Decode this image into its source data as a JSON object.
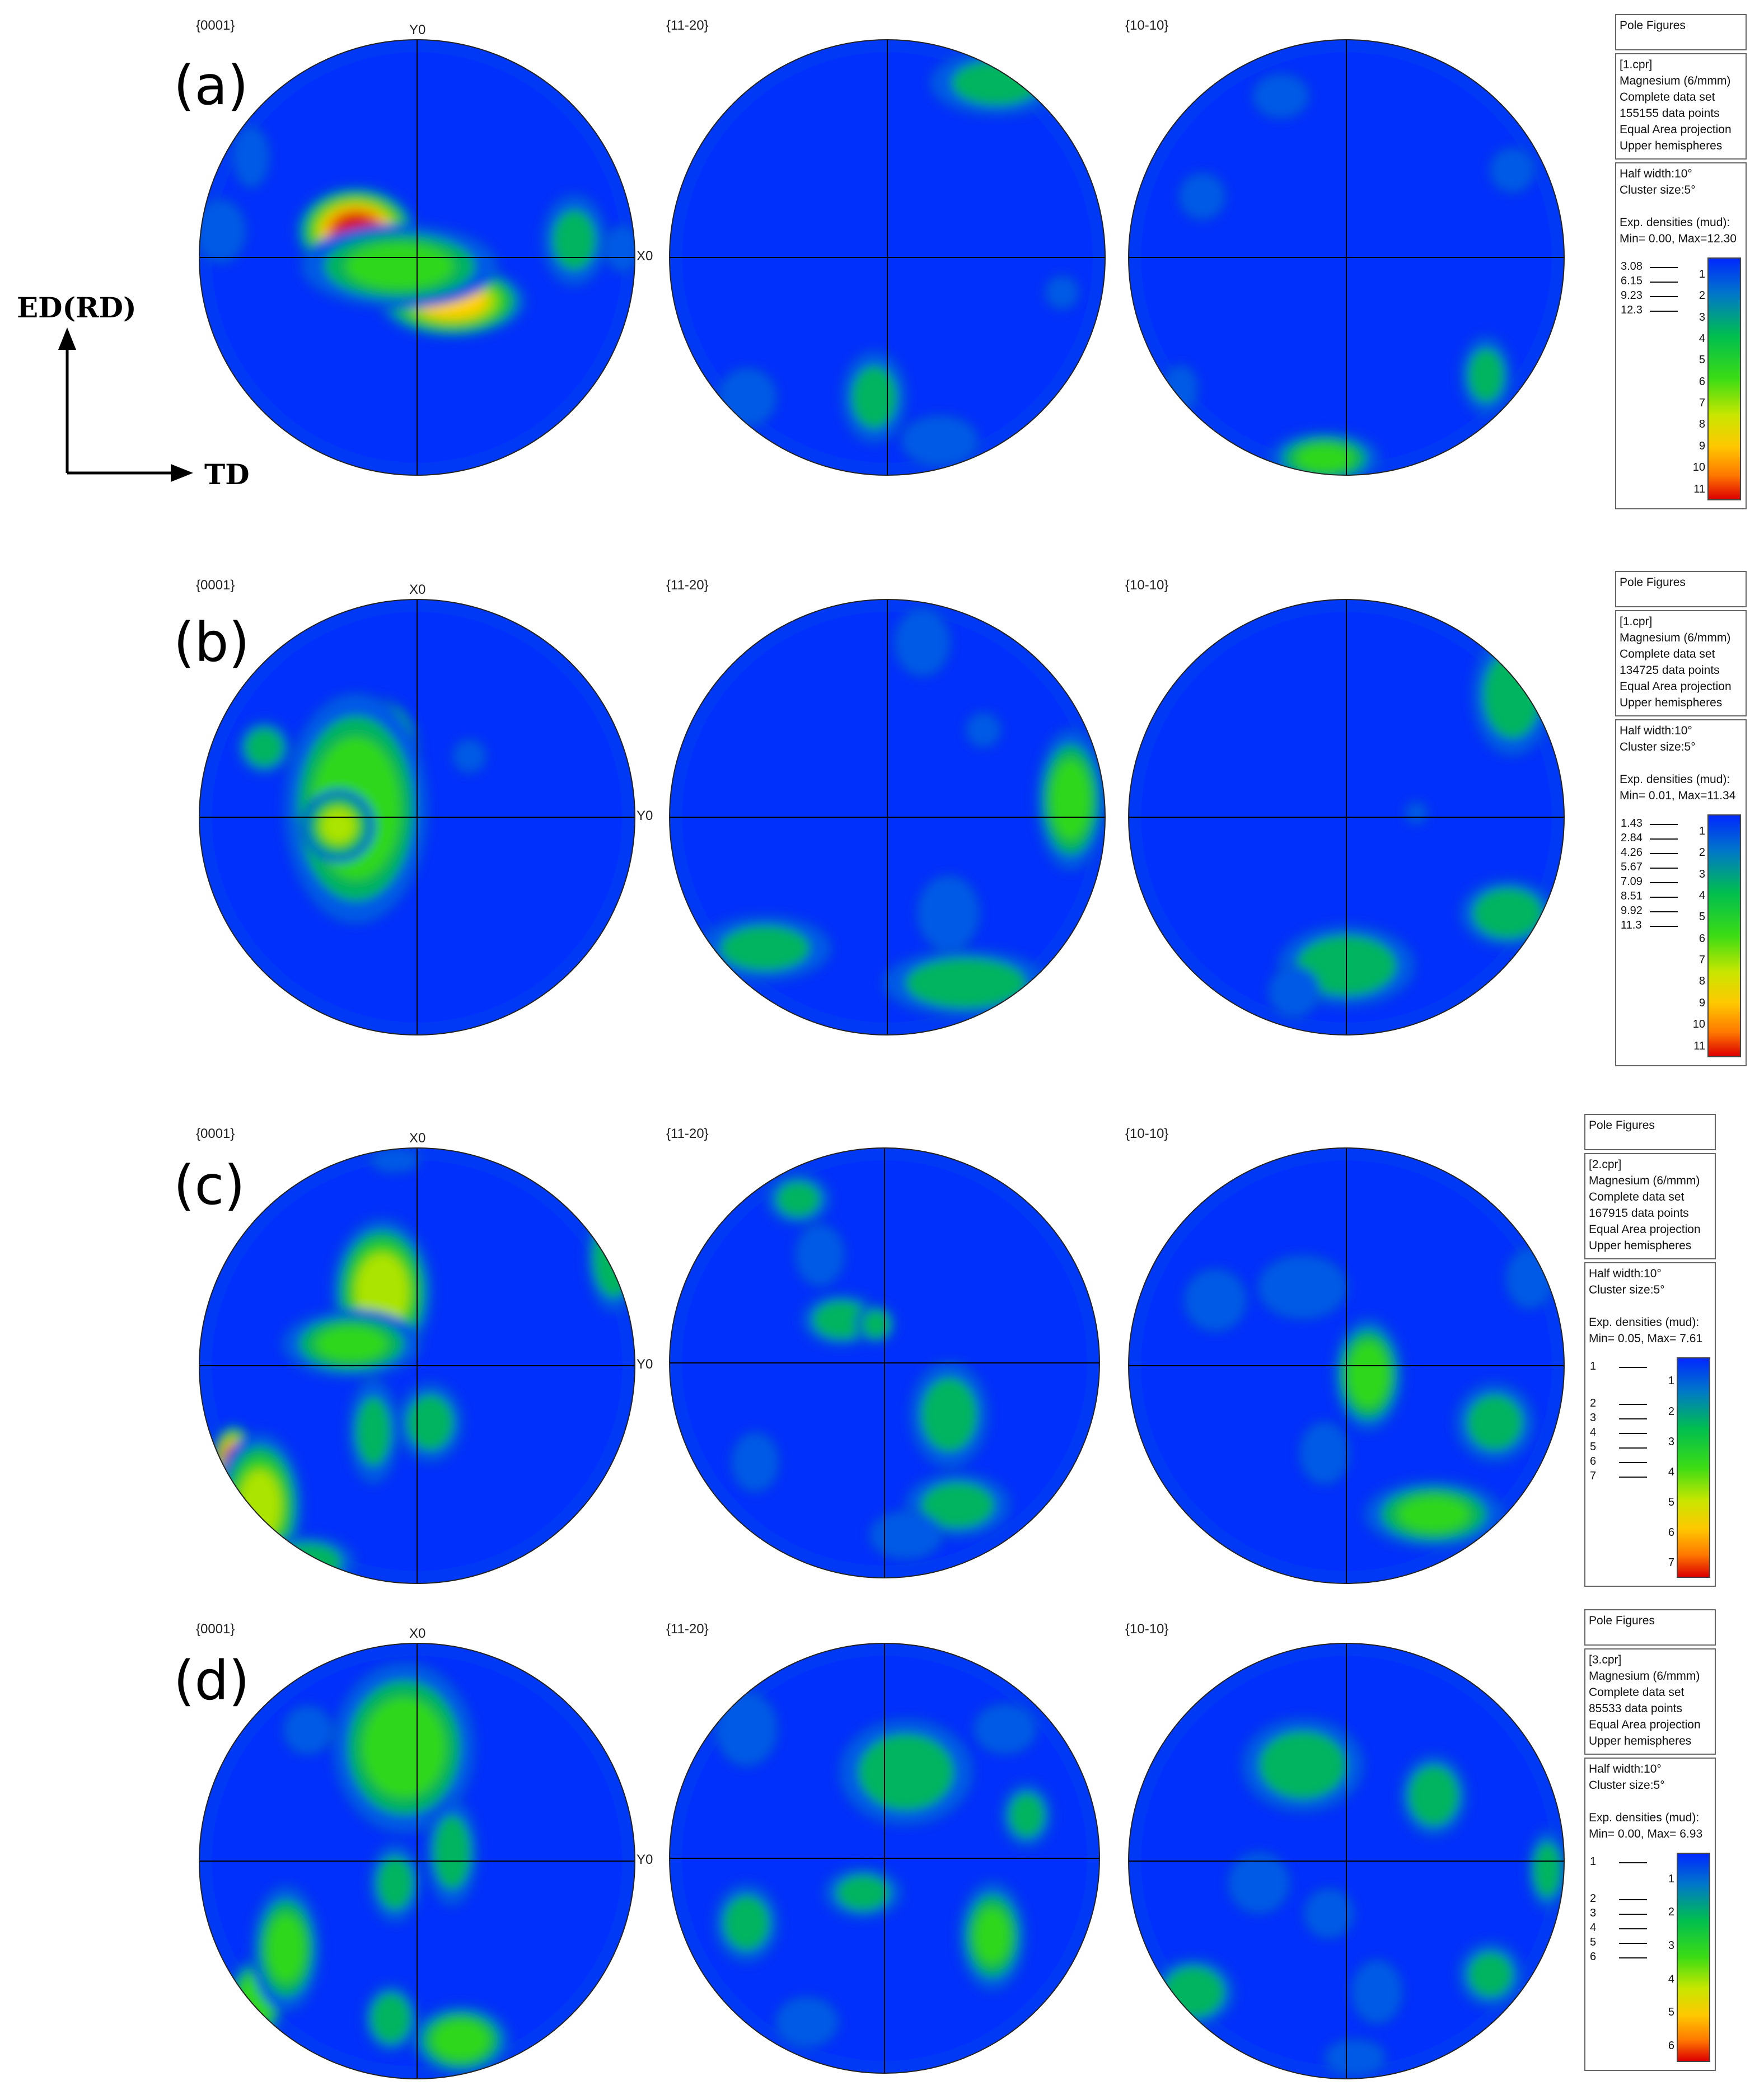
{
  "axes_indicator": {
    "vertical": "ED(RD)",
    "horizontal": "TD"
  },
  "panels": [
    {
      "label": "(a)",
      "titles": [
        "{0001}",
        "{11-20}",
        "{10-10}"
      ],
      "axis_labels": {
        "top": "Y0",
        "right": "X0"
      },
      "legend": {
        "header": "Pole Figures",
        "info": [
          "[1.cpr]",
          "Magnesium (6/mmm)",
          "Complete data set",
          "155155 data points",
          "Equal Area projection",
          "Upper hemispheres"
        ],
        "params": [
          "Half width:10°",
          "Cluster size:5°",
          "",
          "Exp. densities (mud):",
          "Min= 0.00, Max=12.30"
        ],
        "levels": [
          "3.08",
          "6.15",
          "9.23",
          "12.3"
        ],
        "scale": [
          "1",
          "2",
          "3",
          "4",
          "5",
          "6",
          "7",
          "8",
          "9",
          "10",
          "11"
        ]
      },
      "blobs": [
        [
          [
            0.36,
            0.44,
            0.08,
            0.06,
            1.0
          ],
          [
            0.58,
            0.6,
            0.1,
            0.05,
            0.78
          ],
          [
            0.46,
            0.52,
            0.14,
            0.06,
            0.45
          ],
          [
            0.86,
            0.46,
            0.05,
            0.07,
            0.28
          ],
          [
            0.05,
            0.44,
            0.04,
            0.05,
            0.25
          ],
          [
            0.12,
            0.27,
            0.03,
            0.05,
            0.2
          ],
          [
            0.97,
            0.48,
            0.03,
            0.04,
            0.15
          ]
        ],
        [
          [
            0.75,
            0.1,
            0.1,
            0.05,
            0.3
          ],
          [
            0.47,
            0.82,
            0.05,
            0.07,
            0.3
          ],
          [
            0.62,
            0.92,
            0.06,
            0.04,
            0.25
          ],
          [
            0.18,
            0.82,
            0.05,
            0.05,
            0.15
          ],
          [
            0.9,
            0.58,
            0.03,
            0.03,
            0.12
          ],
          [
            0.1,
            0.5,
            0.03,
            0.03,
            0.1
          ]
        ],
        [
          [
            0.45,
            0.96,
            0.08,
            0.04,
            0.42
          ],
          [
            0.82,
            0.77,
            0.04,
            0.06,
            0.3
          ],
          [
            0.12,
            0.8,
            0.03,
            0.04,
            0.15
          ],
          [
            0.17,
            0.36,
            0.04,
            0.04,
            0.15
          ],
          [
            0.35,
            0.13,
            0.05,
            0.04,
            0.12
          ],
          [
            0.88,
            0.3,
            0.04,
            0.04,
            0.12
          ]
        ]
      ]
    },
    {
      "label": "(b)",
      "titles": [
        "{0001}",
        "{11-20}",
        "{10-10}"
      ],
      "axis_labels": {
        "top": "X0",
        "right": "Y0"
      },
      "legend": {
        "header": "Pole Figures",
        "info": [
          "[1.cpr]",
          "Magnesium (6/mmm)",
          "Complete data set",
          "134725 data points",
          "Equal Area projection",
          "Upper hemispheres"
        ],
        "params": [
          "Half width:10°",
          "Cluster size:5°",
          "",
          "Exp. densities (mud):",
          "Min= 0.01, Max=11.34"
        ],
        "levels": [
          "1.43",
          "2.84",
          "4.26",
          "5.67",
          "7.09",
          "8.51",
          "9.92",
          "11.3"
        ],
        "scale": [
          "1",
          "2",
          "3",
          "4",
          "5",
          "6",
          "7",
          "8",
          "9",
          "10",
          "11"
        ]
      },
      "blobs": [
        [
          [
            0.42,
            0.35,
            0.05,
            0.07,
            1.0
          ],
          [
            0.36,
            0.48,
            0.1,
            0.16,
            0.55
          ],
          [
            0.32,
            0.52,
            0.05,
            0.05,
            0.6
          ],
          [
            0.15,
            0.34,
            0.04,
            0.04,
            0.35
          ],
          [
            0.62,
            0.36,
            0.03,
            0.03,
            0.12
          ]
        ],
        [
          [
            0.92,
            0.46,
            0.05,
            0.1,
            0.48
          ],
          [
            0.68,
            0.88,
            0.12,
            0.05,
            0.38
          ],
          [
            0.22,
            0.8,
            0.1,
            0.05,
            0.3
          ],
          [
            0.64,
            0.72,
            0.05,
            0.06,
            0.22
          ],
          [
            0.72,
            0.3,
            0.03,
            0.03,
            0.15
          ],
          [
            0.58,
            0.1,
            0.05,
            0.06,
            0.12
          ]
        ],
        [
          [
            0.5,
            0.84,
            0.1,
            0.06,
            0.38
          ],
          [
            0.87,
            0.72,
            0.07,
            0.05,
            0.38
          ],
          [
            0.88,
            0.22,
            0.06,
            0.09,
            0.35
          ],
          [
            0.38,
            0.9,
            0.04,
            0.04,
            0.25
          ],
          [
            0.66,
            0.49,
            0.02,
            0.02,
            0.12
          ],
          [
            0.05,
            0.66,
            0.04,
            0.05,
            0.1
          ]
        ]
      ]
    },
    {
      "label": "(c)",
      "titles": [
        "{0001}",
        "{11-20}",
        "{10-10}"
      ],
      "axis_labels": {
        "top": "X0",
        "right": "Y0"
      },
      "legend": {
        "header": "Pole Figures",
        "info": [
          "[2.cpr]",
          "Magnesium (6/mmm)",
          "Complete data set",
          "167915 data points",
          "Equal Area projection",
          "Upper hemispheres"
        ],
        "params": [
          "Half width:10°",
          "Cluster size:5°",
          "",
          "Exp. densities (mud):",
          "Min= 0.05, Max= 7.61"
        ],
        "levels": [
          "1",
          "2",
          "3",
          "4",
          "5",
          "6",
          "7"
        ],
        "scale": [
          "1",
          "2",
          "3",
          "4",
          "5",
          "6",
          "7"
        ]
      },
      "blobs": [
        [
          [
            0.08,
            0.72,
            0.03,
            0.05,
            1.0
          ],
          [
            0.14,
            0.82,
            0.06,
            0.1,
            0.6
          ],
          [
            0.42,
            0.33,
            0.07,
            0.1,
            0.65
          ],
          [
            0.35,
            0.45,
            0.1,
            0.05,
            0.42
          ],
          [
            0.95,
            0.25,
            0.04,
            0.08,
            0.4
          ],
          [
            0.53,
            0.63,
            0.05,
            0.06,
            0.32
          ],
          [
            0.4,
            0.65,
            0.04,
            0.08,
            0.28
          ],
          [
            0.45,
            0.03,
            0.04,
            0.02,
            0.2
          ],
          [
            0.25,
            0.95,
            0.07,
            0.04,
            0.35
          ]
        ],
        [
          [
            0.4,
            0.4,
            0.06,
            0.04,
            0.35
          ],
          [
            0.48,
            0.41,
            0.03,
            0.03,
            0.35
          ],
          [
            0.65,
            0.62,
            0.06,
            0.08,
            0.33
          ],
          [
            0.67,
            0.83,
            0.08,
            0.05,
            0.32
          ],
          [
            0.3,
            0.12,
            0.05,
            0.04,
            0.3
          ],
          [
            0.35,
            0.25,
            0.04,
            0.05,
            0.22
          ],
          [
            0.2,
            0.73,
            0.04,
            0.05,
            0.18
          ],
          [
            0.55,
            0.9,
            0.06,
            0.04,
            0.2
          ]
        ],
        [
          [
            0.55,
            0.52,
            0.05,
            0.08,
            0.5
          ],
          [
            0.7,
            0.84,
            0.1,
            0.05,
            0.42
          ],
          [
            0.84,
            0.63,
            0.06,
            0.06,
            0.32
          ],
          [
            0.4,
            0.32,
            0.07,
            0.05,
            0.25
          ],
          [
            0.2,
            0.35,
            0.05,
            0.05,
            0.22
          ],
          [
            0.92,
            0.3,
            0.04,
            0.05,
            0.18
          ],
          [
            0.45,
            0.7,
            0.04,
            0.05,
            0.22
          ]
        ]
      ]
    },
    {
      "label": "(d)",
      "titles": [
        "{0001}",
        "{11-20}",
        "{10-10}"
      ],
      "axis_labels": {
        "top": "X0",
        "right": "Y0"
      },
      "legend": {
        "header": "Pole Figures",
        "info": [
          "[3.cpr]",
          "Magnesium (6/mmm)",
          "Complete data set",
          "85533 data points",
          "Equal Area projection",
          "Upper hemispheres"
        ],
        "params": [
          "Half width:10°",
          "Cluster size:5°",
          "",
          "Exp. densities (mud):",
          "Min= 0.00, Max= 6.93"
        ],
        "levels": [
          "1",
          "2",
          "3",
          "4",
          "5",
          "6"
        ],
        "scale": [
          "1",
          "2",
          "3",
          "4",
          "5",
          "6"
        ]
      },
      "blobs": [
        [
          [
            0.43,
            0.14,
            0.04,
            0.03,
            1.0
          ],
          [
            0.47,
            0.24,
            0.1,
            0.12,
            0.5
          ],
          [
            0.13,
            0.82,
            0.04,
            0.06,
            0.55
          ],
          [
            0.2,
            0.7,
            0.05,
            0.09,
            0.45
          ],
          [
            0.6,
            0.91,
            0.07,
            0.05,
            0.5
          ],
          [
            0.44,
            0.86,
            0.04,
            0.05,
            0.38
          ],
          [
            0.58,
            0.48,
            0.04,
            0.08,
            0.32
          ],
          [
            0.45,
            0.55,
            0.04,
            0.06,
            0.3
          ],
          [
            0.25,
            0.2,
            0.04,
            0.04,
            0.2
          ]
        ],
        [
          [
            0.75,
            0.68,
            0.05,
            0.08,
            0.42
          ],
          [
            0.55,
            0.3,
            0.1,
            0.08,
            0.35
          ],
          [
            0.18,
            0.65,
            0.05,
            0.06,
            0.32
          ],
          [
            0.45,
            0.58,
            0.06,
            0.04,
            0.3
          ],
          [
            0.83,
            0.4,
            0.04,
            0.05,
            0.3
          ],
          [
            0.78,
            0.2,
            0.05,
            0.04,
            0.25
          ],
          [
            0.32,
            0.88,
            0.05,
            0.04,
            0.25
          ],
          [
            0.18,
            0.2,
            0.05,
            0.06,
            0.22
          ]
        ],
        [
          [
            0.15,
            0.8,
            0.06,
            0.05,
            0.4
          ],
          [
            0.7,
            0.35,
            0.05,
            0.06,
            0.38
          ],
          [
            0.4,
            0.28,
            0.09,
            0.07,
            0.35
          ],
          [
            0.96,
            0.52,
            0.03,
            0.06,
            0.32
          ],
          [
            0.83,
            0.76,
            0.05,
            0.05,
            0.3
          ],
          [
            0.57,
            0.8,
            0.04,
            0.05,
            0.25
          ],
          [
            0.46,
            0.62,
            0.04,
            0.04,
            0.22
          ],
          [
            0.3,
            0.55,
            0.05,
            0.05,
            0.2
          ],
          [
            0.52,
            0.95,
            0.05,
            0.03,
            0.2
          ]
        ]
      ]
    }
  ]
}
